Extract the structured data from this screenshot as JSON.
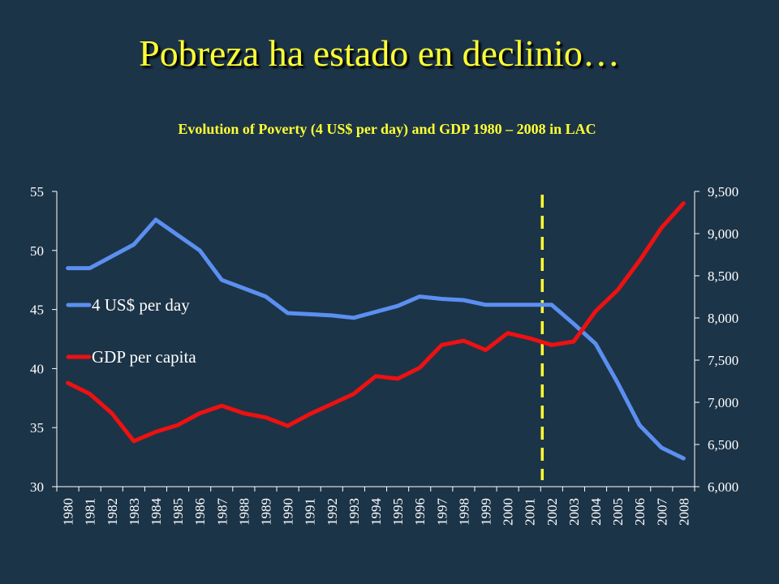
{
  "slide": {
    "title": "Pobreza ha estado en declinio…"
  },
  "colors": {
    "background": "#1c3448",
    "title": "#ffff33",
    "text": "#ffffff",
    "poverty_series": "#5b8ff0",
    "gdp_series": "#ee1111",
    "marker_line": "#ffff33"
  },
  "chart_data": {
    "type": "line",
    "title": "Evolution of Poverty (4 US$  per day) and GDP 1980 – 2008 in LAC",
    "xlabel": "",
    "ylabel": "",
    "y2label": "",
    "x": [
      "1980",
      "1981",
      "1982",
      "1983",
      "1984",
      "1985",
      "1986",
      "1987",
      "1988",
      "1989",
      "1990",
      "1991",
      "1992",
      "1993",
      "1994",
      "1995",
      "1996",
      "1997",
      "1998",
      "1999",
      "2000",
      "2001",
      "2002",
      "2003",
      "2004",
      "2005",
      "2006",
      "2007",
      "2008"
    ],
    "ylim": [
      30,
      55
    ],
    "y_ticks": [
      "30",
      "35",
      "40",
      "45",
      "50",
      "55"
    ],
    "y_tick_values": [
      30,
      35,
      40,
      45,
      50,
      55
    ],
    "y2lim": [
      6000,
      9500
    ],
    "y2_ticks": [
      "6,000",
      "6,500",
      "7,000",
      "7,500",
      "8,000",
      "8,500",
      "9,000",
      "9,500"
    ],
    "y2_tick_values": [
      6000,
      6500,
      7000,
      7500,
      8000,
      8500,
      9000,
      9500
    ],
    "grid": false,
    "legend_position": "left",
    "series": [
      {
        "name": "4 US$ per day",
        "axis": "left",
        "color": "#5b8ff0",
        "values": [
          48.5,
          48.5,
          49.5,
          50.5,
          52.6,
          51.3,
          50.0,
          47.5,
          46.8,
          46.1,
          44.7,
          44.6,
          44.5,
          44.3,
          44.8,
          45.3,
          46.1,
          45.9,
          45.8,
          45.4,
          45.4,
          45.4,
          45.4,
          43.8,
          42.1,
          38.8,
          35.2,
          33.3,
          32.4
        ]
      },
      {
        "name": "GDP per capita",
        "axis": "right",
        "color": "#ee1111",
        "values": [
          7230,
          7100,
          6870,
          6540,
          6650,
          6730,
          6870,
          6960,
          6870,
          6820,
          6720,
          6860,
          6980,
          7100,
          7310,
          7280,
          7410,
          7680,
          7730,
          7620,
          7820,
          7760,
          7680,
          7720,
          8080,
          8330,
          8680,
          9070,
          9360
        ]
      }
    ],
    "annotations": [
      {
        "type": "vertical-dashed-line",
        "between": [
          "2001",
          "2002"
        ],
        "color": "#ffff33"
      }
    ]
  }
}
